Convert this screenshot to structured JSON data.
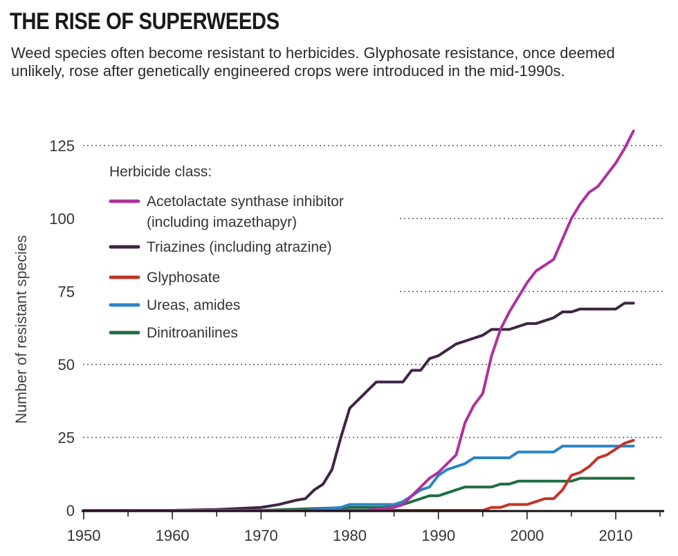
{
  "header": {
    "title": "THE RISE OF SUPERWEEDS",
    "subtitle": "Weed species often become resistant to herbicides. Glyphosate resistance, once deemed unlikely, rose after genetically engineered crops were introduced in the mid-1990s."
  },
  "chart_data": {
    "type": "line",
    "title": "THE RISE OF SUPERWEEDS",
    "xlabel": "",
    "ylabel": "Number of resistant species",
    "xlim": [
      1950,
      2016
    ],
    "ylim": [
      0,
      132
    ],
    "x_ticks": [
      1950,
      1960,
      1970,
      1980,
      1990,
      2000,
      2010
    ],
    "y_ticks": [
      0,
      25,
      50,
      75,
      100,
      125
    ],
    "grid": "horizontal dotted",
    "legend": {
      "title": "Herbicide class:",
      "position": "top-left",
      "entries": [
        {
          "lines": [
            "Acetolactate synthase inhibitor",
            "(including imazethapyr)"
          ],
          "color": "#b0309e"
        },
        {
          "lines": [
            "Triazines (including atrazine)"
          ],
          "color": "#3f2544"
        },
        {
          "lines": [
            "Glyphosate"
          ],
          "color": "#c0352a"
        },
        {
          "lines": [
            "Ureas, amides"
          ],
          "color": "#2a85c7"
        },
        {
          "lines": [
            "Dinitroanilines"
          ],
          "color": "#1f6e43"
        }
      ]
    },
    "series": [
      {
        "name": "Acetolactate synthase inhibitor (including imazethapyr)",
        "color": "#b0309e",
        "x": [
          1982,
          1985,
          1986,
          1987,
          1988,
          1989,
          1990,
          1991,
          1992,
          1993,
          1994,
          1995,
          1996,
          1997,
          1998,
          1999,
          2000,
          2001,
          2002,
          2003,
          2004,
          2005,
          2006,
          2007,
          2008,
          2009,
          2010,
          2011,
          2012
        ],
        "y": [
          0,
          1,
          2,
          5,
          8,
          11,
          13,
          16,
          19,
          30,
          36,
          40,
          53,
          62,
          68,
          73,
          78,
          82,
          84,
          86,
          93,
          100,
          105,
          109,
          111,
          115,
          119,
          124,
          130
        ]
      },
      {
        "name": "Triazines (including atrazine)",
        "color": "#3f2544",
        "x": [
          1950,
          1960,
          1965,
          1968,
          1970,
          1972,
          1974,
          1975,
          1976,
          1977,
          1978,
          1979,
          1980,
          1981,
          1982,
          1983,
          1984,
          1985,
          1986,
          1987,
          1988,
          1989,
          1990,
          1991,
          1992,
          1993,
          1994,
          1995,
          1996,
          1997,
          1998,
          1999,
          2000,
          2001,
          2002,
          2003,
          2004,
          2005,
          2006,
          2007,
          2008,
          2009,
          2010,
          2011,
          2012
        ],
        "y": [
          0,
          0,
          0.3,
          0.7,
          1,
          2,
          3.5,
          4,
          7,
          9,
          14,
          25,
          35,
          38,
          41,
          44,
          44,
          44,
          44,
          48,
          48,
          52,
          53,
          55,
          57,
          58,
          59,
          60,
          62,
          62,
          62,
          63,
          64,
          64,
          65,
          66,
          68,
          68,
          69,
          69,
          69,
          69,
          69,
          71,
          71
        ]
      },
      {
        "name": "Glyphosate",
        "color": "#c0352a",
        "x": [
          1995,
          1996,
          1997,
          1998,
          1999,
          2000,
          2001,
          2002,
          2003,
          2004,
          2005,
          2006,
          2007,
          2008,
          2009,
          2010,
          2011,
          2012
        ],
        "y": [
          0,
          1,
          1,
          2,
          2,
          2,
          3,
          4,
          4,
          7,
          12,
          13,
          15,
          18,
          19,
          21,
          23,
          24
        ]
      },
      {
        "name": "Ureas, amides",
        "color": "#2a85c7",
        "x": [
          1975,
          1979,
          1980,
          1985,
          1986,
          1987,
          1988,
          1989,
          1990,
          1991,
          1992,
          1993,
          1994,
          1995,
          1996,
          1997,
          1998,
          1999,
          2000,
          2001,
          2002,
          2003,
          2004,
          2005,
          2006,
          2007,
          2008,
          2009,
          2010,
          2011,
          2012
        ],
        "y": [
          0,
          1,
          2,
          2,
          3,
          5,
          7,
          8,
          12,
          14,
          15,
          16,
          18,
          18,
          18,
          18,
          18,
          20,
          20,
          20,
          20,
          20,
          22,
          22,
          22,
          22,
          22,
          22,
          22,
          22,
          22
        ]
      },
      {
        "name": "Dinitroanilines",
        "color": "#1f6e43",
        "x": [
          1970,
          1980,
          1984,
          1986,
          1987,
          1988,
          1989,
          1990,
          1991,
          1992,
          1993,
          1994,
          1995,
          1996,
          1997,
          1998,
          1999,
          2000,
          2001,
          2002,
          2003,
          2004,
          2005,
          2006,
          2007,
          2008,
          2009,
          2010,
          2011,
          2012
        ],
        "y": [
          0,
          1,
          1,
          2,
          3,
          4,
          5,
          5,
          6,
          7,
          8,
          8,
          8,
          8,
          9,
          9,
          10,
          10,
          10,
          10,
          10,
          10,
          10,
          11,
          11,
          11,
          11,
          11,
          11,
          11
        ]
      }
    ]
  }
}
